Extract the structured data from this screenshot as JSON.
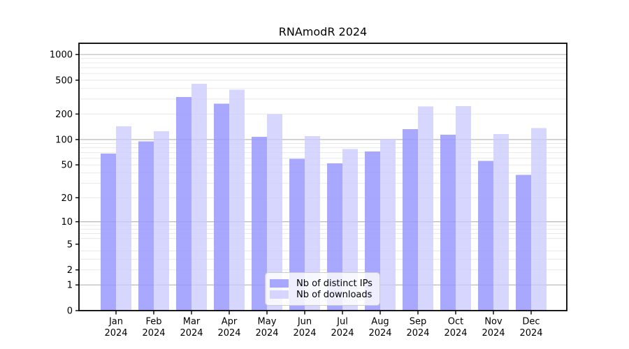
{
  "chart_data": {
    "type": "bar",
    "title": "RNAmodR 2024",
    "categories": [
      "Jan",
      "Feb",
      "Mar",
      "Apr",
      "May",
      "Jun",
      "Jul",
      "Aug",
      "Sep",
      "Oct",
      "Nov",
      "Dec"
    ],
    "year_label": "2024",
    "series": [
      {
        "name": "Nb of distinct IPs",
        "values": [
          68,
          95,
          316,
          266,
          108,
          59,
          52,
          72,
          133,
          114,
          56,
          38
        ]
      },
      {
        "name": "Nb of downloads",
        "values": [
          143,
          125,
          456,
          385,
          199,
          110,
          77,
          102,
          246,
          248,
          116,
          137
        ]
      }
    ],
    "xlabel": "",
    "ylabel": "",
    "yscale": "log1p",
    "ylim": [
      0,
      1355
    ],
    "y_ticks": [
      0,
      1,
      2,
      5,
      10,
      20,
      50,
      100,
      200,
      500,
      1000
    ],
    "y_grid_major": [
      1,
      10,
      100,
      1000
    ],
    "y_grid_minor": [
      2,
      3,
      4,
      6,
      7,
      8,
      9,
      20,
      30,
      40,
      50,
      60,
      70,
      80,
      90,
      200,
      300,
      400,
      500,
      600,
      700,
      800,
      900
    ],
    "grid": "on",
    "legend_position": "lower center"
  },
  "colors": {
    "ips_bar": "#9999ff",
    "ips_bar_opacity": 0.85,
    "downloads_bar": "#ccccff",
    "downloads_bar_opacity": 0.8,
    "grid_major": "#b0b0b0",
    "grid_minor": "#e8e8e8",
    "axis": "#000000",
    "text": "#000000",
    "background": "#ffffff",
    "legend_border": "#cccccc"
  }
}
